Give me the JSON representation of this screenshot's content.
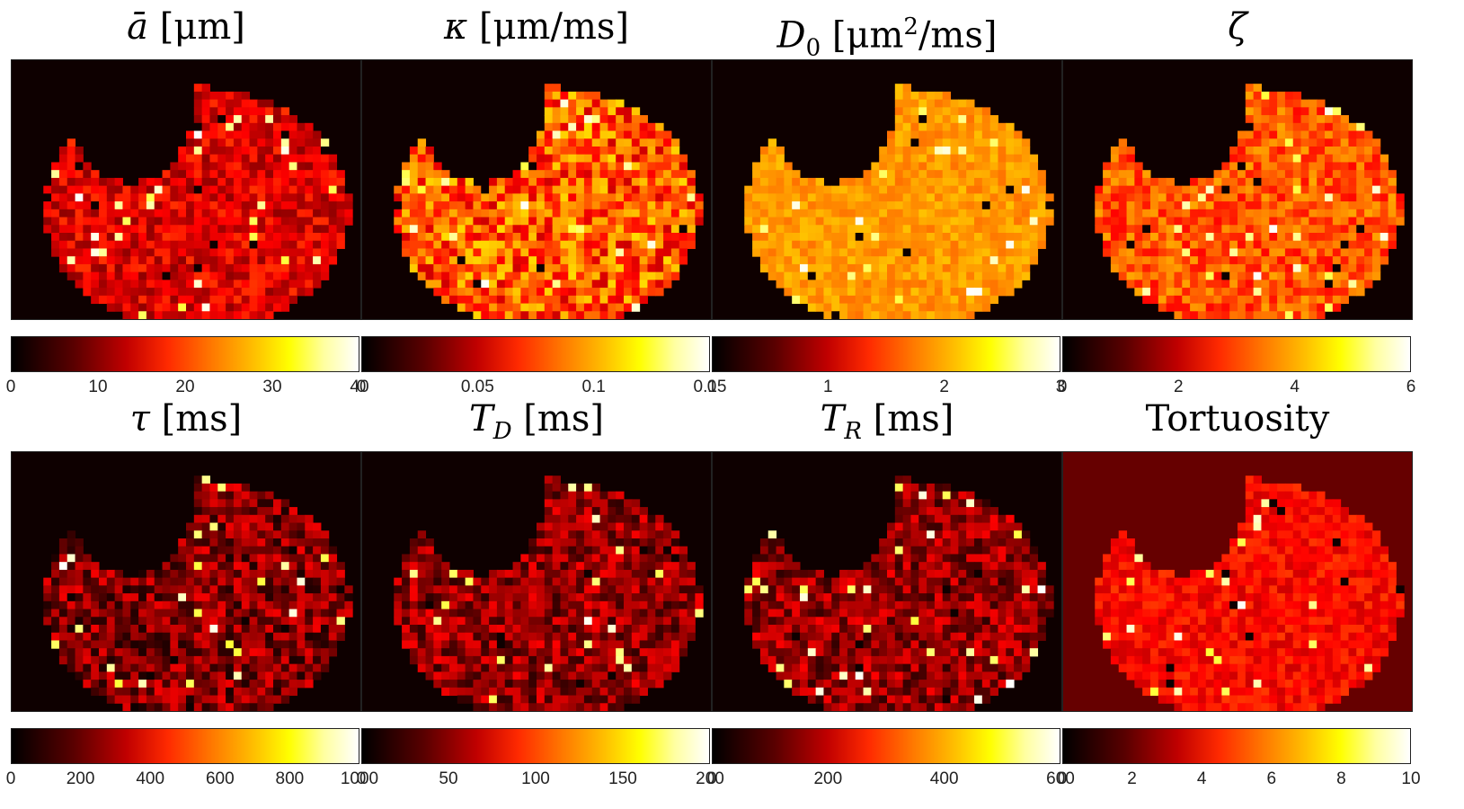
{
  "figure": {
    "colormap": "hot",
    "colors": {
      "background": "#ffffff",
      "text": "#000000"
    }
  },
  "chart_data": [
    {
      "type": "heatmap",
      "title_symbol": "ā",
      "title_unit": "[μm]",
      "colorbar": {
        "min": 0,
        "max": 40,
        "ticks": [
          "0",
          "10",
          "20",
          "30",
          "40"
        ]
      }
    },
    {
      "type": "heatmap",
      "title_symbol": "κ",
      "title_unit": "[μm/ms]",
      "colorbar": {
        "min": 0,
        "max": 0.15,
        "ticks": [
          "0",
          "0.05",
          "0.1",
          "0.15"
        ]
      }
    },
    {
      "type": "heatmap",
      "title_symbol": "D",
      "title_sub": "0",
      "title_unit": "[μm",
      "title_sup": "2",
      "title_unit2": "/ms]",
      "colorbar": {
        "min": 0,
        "max": 3,
        "ticks": [
          "0",
          "1",
          "2",
          "3"
        ]
      }
    },
    {
      "type": "heatmap",
      "title_symbol": "ζ",
      "colorbar": {
        "min": 0,
        "max": 6,
        "ticks": [
          "0",
          "2",
          "4",
          "6"
        ]
      }
    },
    {
      "type": "heatmap",
      "title_symbol": "τ",
      "title_unit": "[ms]",
      "colorbar": {
        "min": 0,
        "max": 1000,
        "ticks": [
          "0",
          "200",
          "400",
          "600",
          "800",
          "1000"
        ]
      }
    },
    {
      "type": "heatmap",
      "title_symbol": "T",
      "title_sub": "D",
      "title_unit": "[ms]",
      "colorbar": {
        "min": 0,
        "max": 200,
        "ticks": [
          "0",
          "50",
          "100",
          "150",
          "200"
        ]
      }
    },
    {
      "type": "heatmap",
      "title_symbol": "T",
      "title_sub": "R",
      "title_unit": "[ms]",
      "colorbar": {
        "min": 0,
        "max": 600,
        "ticks": [
          "0",
          "200",
          "400",
          "600"
        ]
      }
    },
    {
      "type": "heatmap",
      "title_text": "Tortuosity",
      "colorbar": {
        "min": 0,
        "max": 10,
        "ticks": [
          "0",
          "2",
          "4",
          "6",
          "8",
          "10"
        ]
      }
    }
  ]
}
